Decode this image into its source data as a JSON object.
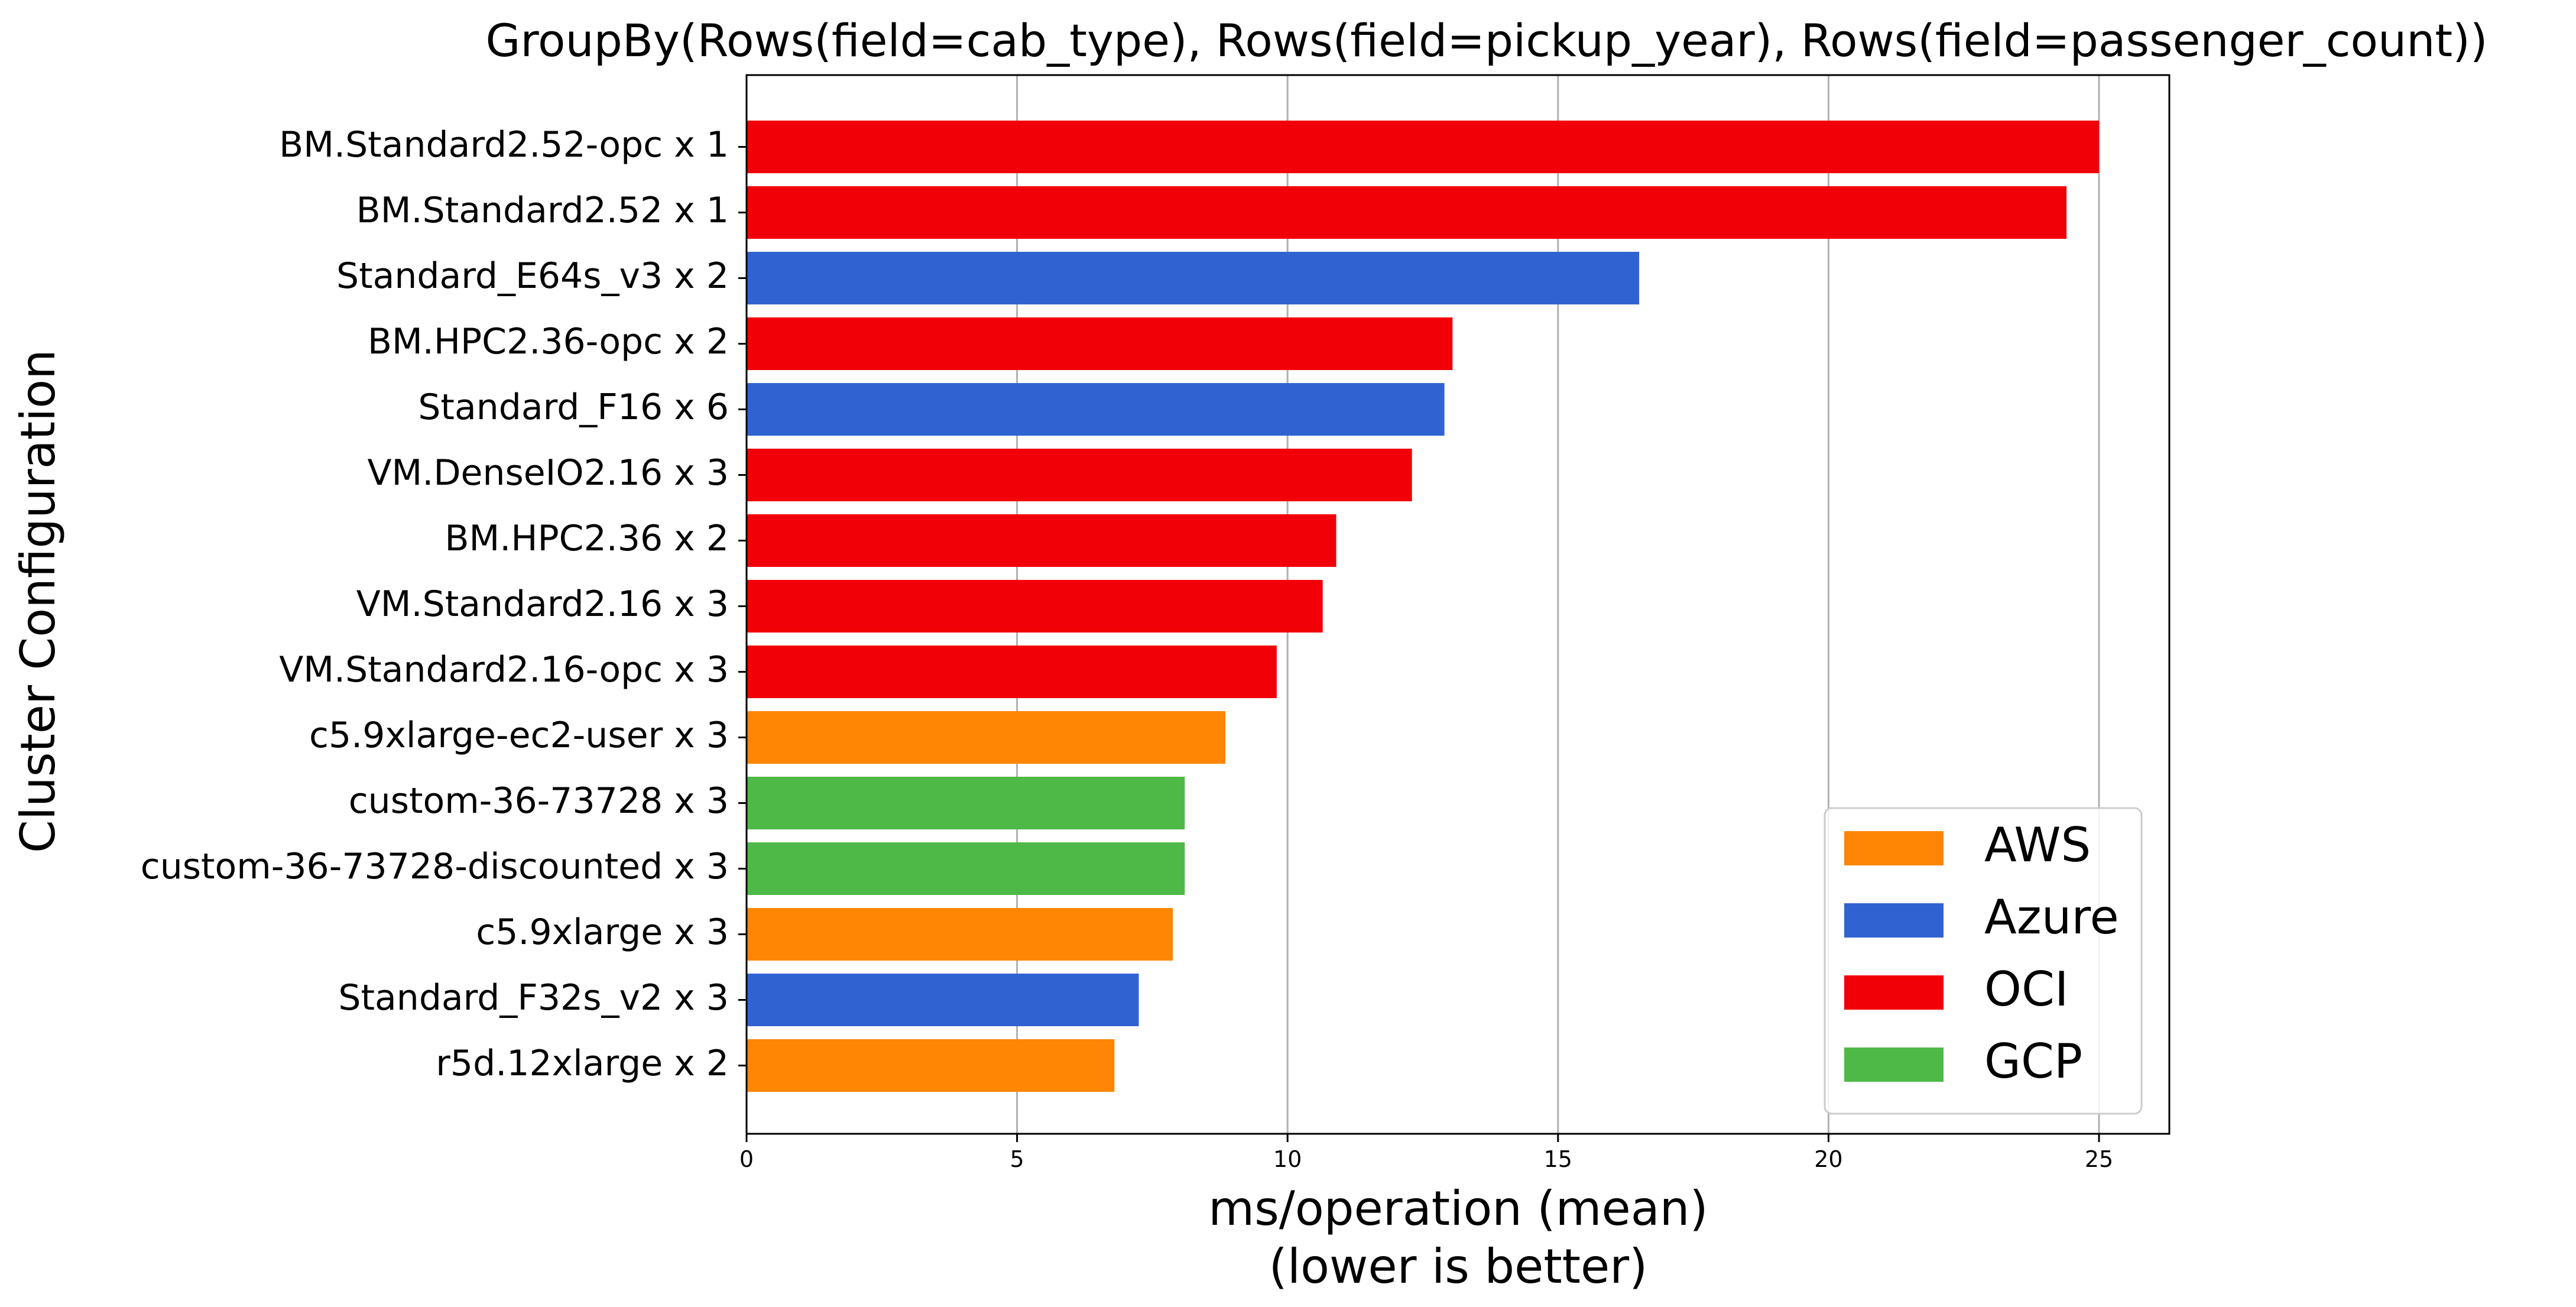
{
  "chart_data": {
    "type": "bar",
    "orientation": "horizontal",
    "title": "GroupBy(Rows(field=cab_type), Rows(field=pickup_year), Rows(field=passenger_count))",
    "xlabel": "ms/operation (mean)",
    "xlabel_sub": "(lower is better)",
    "ylabel": "Cluster Configuration",
    "xlim": [
      0,
      26.3
    ],
    "xticks": [
      0,
      5,
      10,
      15,
      20,
      25
    ],
    "grid": "x",
    "legend_position": "lower-right",
    "colors": {
      "AWS": "#ff8505",
      "Azure": "#3063d1",
      "OCI": "#f20007",
      "GCP": "#4eb946"
    },
    "legend": [
      "AWS",
      "Azure",
      "OCI",
      "GCP"
    ],
    "bars": [
      {
        "label": "BM.Standard2.52-opc x 1",
        "value": 25.0,
        "provider": "OCI"
      },
      {
        "label": "BM.Standard2.52 x 1",
        "value": 24.4,
        "provider": "OCI"
      },
      {
        "label": "Standard_E64s_v3 x 2",
        "value": 16.5,
        "provider": "Azure"
      },
      {
        "label": "BM.HPC2.36-opc x 2",
        "value": 13.05,
        "provider": "OCI"
      },
      {
        "label": "Standard_F16 x 6",
        "value": 12.9,
        "provider": "Azure"
      },
      {
        "label": "VM.DenseIO2.16 x 3",
        "value": 12.3,
        "provider": "OCI"
      },
      {
        "label": "BM.HPC2.36 x 2",
        "value": 10.9,
        "provider": "OCI"
      },
      {
        "label": "VM.Standard2.16 x 3",
        "value": 10.65,
        "provider": "OCI"
      },
      {
        "label": "VM.Standard2.16-opc x 3",
        "value": 9.8,
        "provider": "OCI"
      },
      {
        "label": "c5.9xlarge-ec2-user x 3",
        "value": 8.85,
        "provider": "AWS"
      },
      {
        "label": "custom-36-73728 x 3",
        "value": 8.1,
        "provider": "GCP"
      },
      {
        "label": "custom-36-73728-discounted x 3",
        "value": 8.1,
        "provider": "GCP"
      },
      {
        "label": "c5.9xlarge x 3",
        "value": 7.88,
        "provider": "AWS"
      },
      {
        "label": "Standard_F32s_v2 x 3",
        "value": 7.25,
        "provider": "Azure"
      },
      {
        "label": "r5d.12xlarge x 2",
        "value": 6.8,
        "provider": "AWS"
      }
    ]
  }
}
